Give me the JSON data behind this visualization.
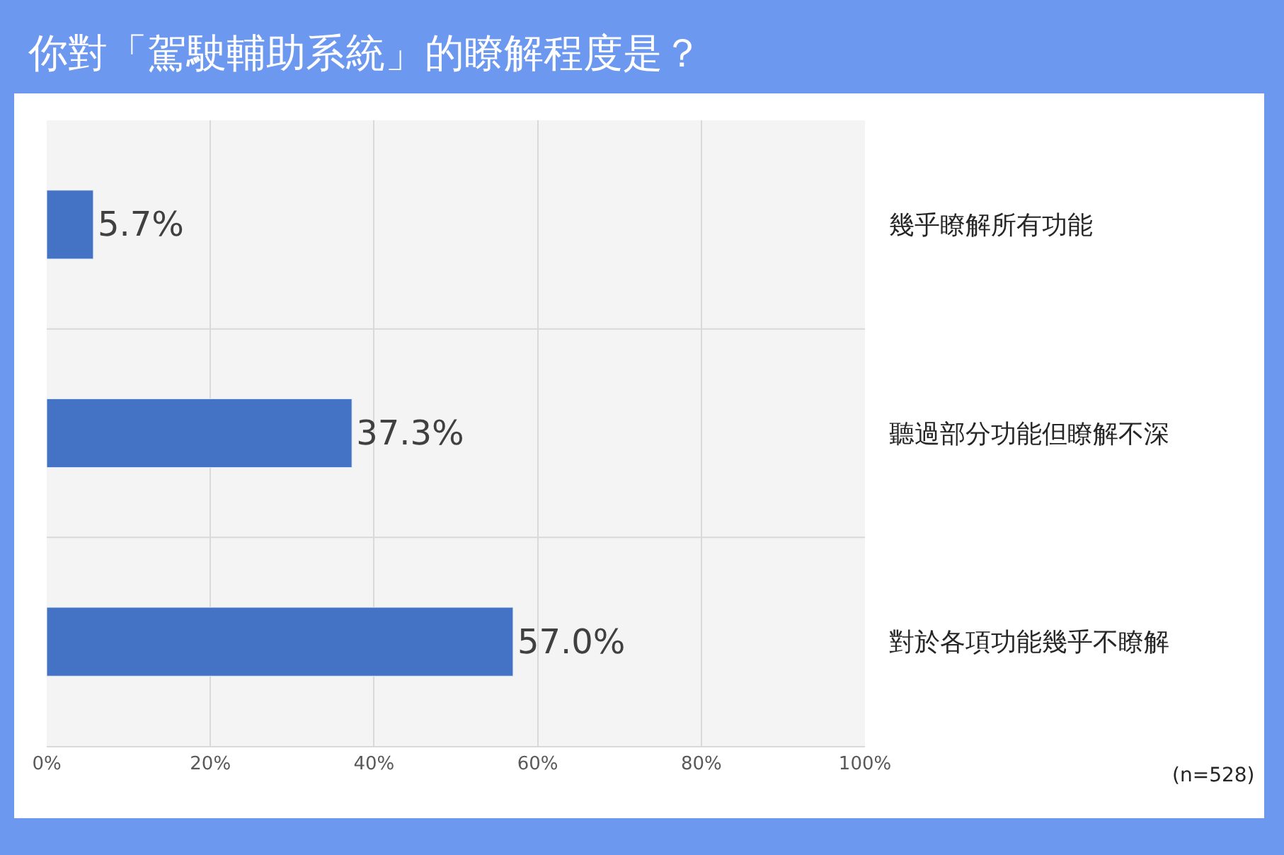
{
  "chart_data": {
    "type": "bar",
    "orientation": "horizontal",
    "title": "你對「駕駛輔助系統」的瞭解程度是？",
    "categories": [
      "幾乎瞭解所有功能",
      "聽過部分功能但瞭解不深",
      "對於各項功能幾乎不瞭解"
    ],
    "values": [
      5.7,
      37.3,
      57.0
    ],
    "color": "#4472c4",
    "value_labels": [
      "5.7%",
      "37.3%",
      "57.0%"
    ],
    "xlim": [
      0,
      100
    ],
    "xticks": [
      {
        "value": 0,
        "label": "0%"
      },
      {
        "value": 20,
        "label": "20%"
      },
      {
        "value": 40,
        "label": "40%"
      },
      {
        "value": 60,
        "label": "60%"
      },
      {
        "value": 80,
        "label": "80%"
      },
      {
        "value": 100,
        "label": "100%"
      }
    ],
    "grid": true,
    "annotations": [
      "(n=528)"
    ]
  }
}
